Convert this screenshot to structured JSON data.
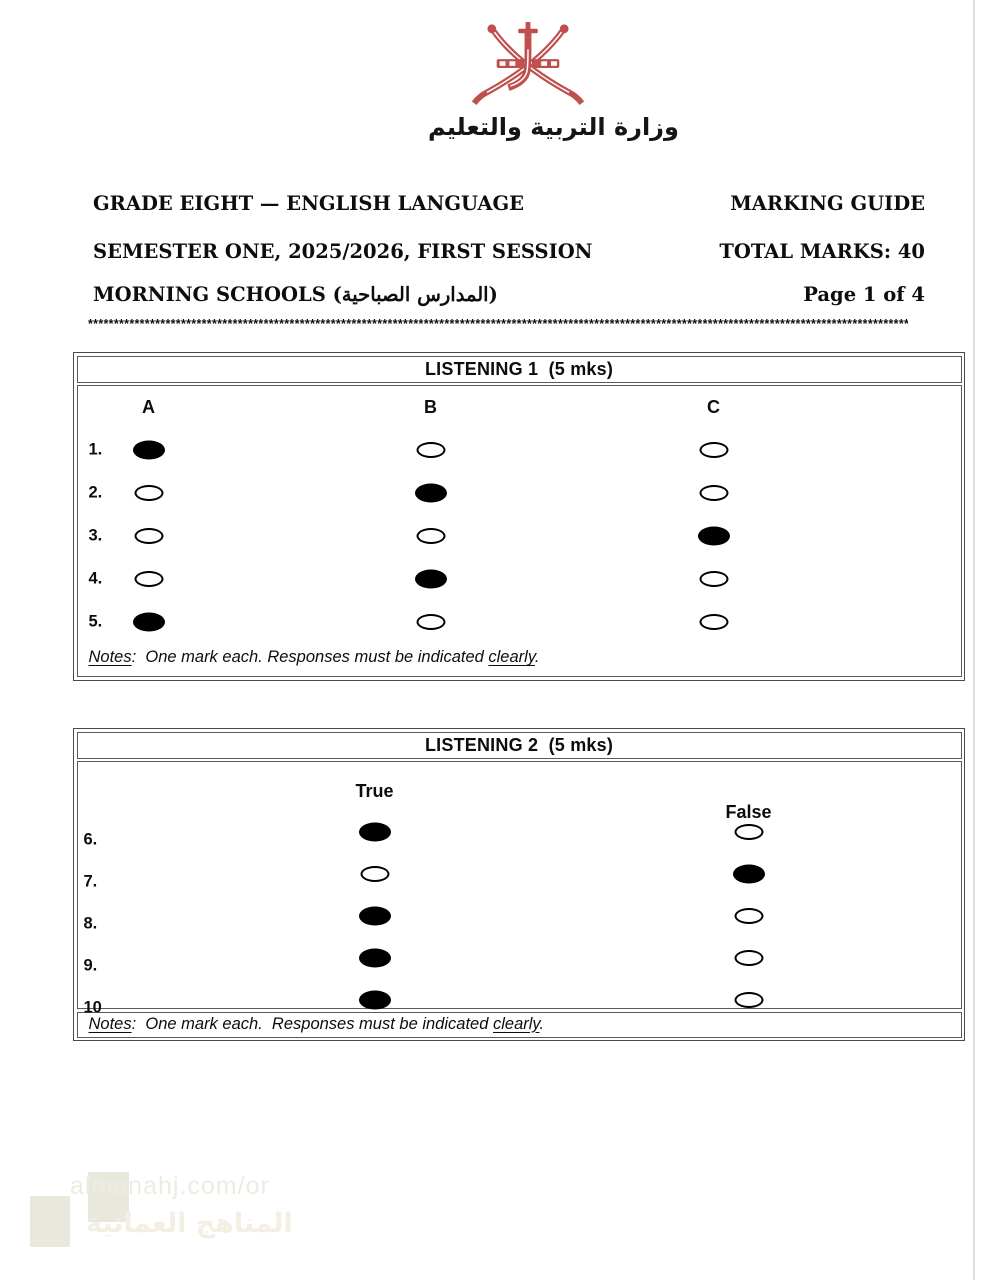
{
  "logo": {
    "emblem_name": "oman-national-emblem",
    "emblem_color": "#c0504d",
    "ministry_name_ar": "وزارة التربية والتعليم"
  },
  "header": {
    "line1_left": "GRADE EIGHT — ENGLISH LANGUAGE",
    "line1_right": "MARKING GUIDE",
    "line2_left": "SEMESTER ONE, 2025/2026, FIRST SESSION",
    "line2_right": "TOTAL MARKS: 40",
    "line3_left": "MORNING SCHOOLS (المدارس الصباحية)",
    "line3_right": "Page 1 of 4",
    "separator": "*********************************************************************************************************************************************************************"
  },
  "listening1": {
    "title": "LISTENING 1  (5 mks)",
    "columns": [
      "A",
      "B",
      "C"
    ],
    "rows": [
      {
        "num": "1.",
        "answer": "A"
      },
      {
        "num": "2.",
        "answer": "B"
      },
      {
        "num": "3.",
        "answer": "C"
      },
      {
        "num": "4.",
        "answer": "B"
      },
      {
        "num": "5.",
        "answer": "A"
      }
    ],
    "notes_label": "Notes",
    "notes_sep": ":  ",
    "notes_text": "One mark each. Responses must be indicated ",
    "notes_underline": "clearly",
    "notes_end": "."
  },
  "listening2": {
    "title": "LISTENING 2  (5 mks)",
    "columns": [
      "True",
      "False"
    ],
    "rows": [
      {
        "num": "6.",
        "answer": "True"
      },
      {
        "num": "7.",
        "answer": "False"
      },
      {
        "num": "8.",
        "answer": "True"
      },
      {
        "num": "9.",
        "answer": "True"
      },
      {
        "num": "10",
        "answer": "True"
      }
    ],
    "notes_label": "Notes",
    "notes_sep": ":  ",
    "notes_text": "One mark each.  Responses must be indicated ",
    "notes_underline": "clearly",
    "notes_end": "."
  },
  "watermark": {
    "url_text": "almanahj.com/or",
    "site_name_ar": "المناهج العمانية",
    "block_color": "#e8e9dc",
    "url_color": "#eeece1",
    "arabic_color": "#f3efe2"
  }
}
